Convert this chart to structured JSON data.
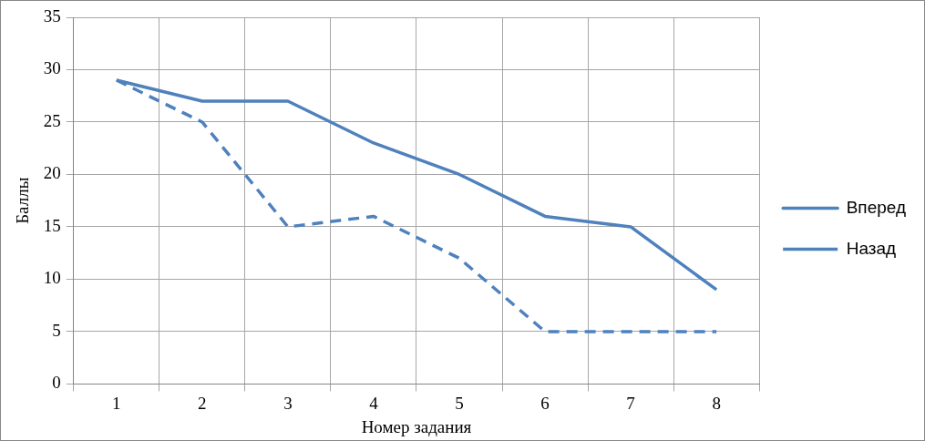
{
  "chart_data": {
    "type": "line",
    "xlabel": "Номер задания",
    "ylabel": "Баллы",
    "categories": [
      "1",
      "2",
      "3",
      "4",
      "5",
      "6",
      "7",
      "8"
    ],
    "series": [
      {
        "name": "Вперед",
        "color": "#4f81bd",
        "values": [
          29,
          27,
          27,
          23,
          20,
          16,
          15,
          9
        ],
        "line_style": "solid"
      },
      {
        "name": "Назад",
        "color": "#4f81bd",
        "values": [
          29,
          25,
          15,
          16,
          12,
          5,
          5,
          5
        ],
        "line_style": "dashed"
      }
    ],
    "ylim": [
      0,
      35
    ],
    "yticks": [
      0,
      5,
      10,
      15,
      20,
      25,
      30,
      35
    ],
    "grid": true,
    "legend": "right",
    "marker": "none"
  }
}
